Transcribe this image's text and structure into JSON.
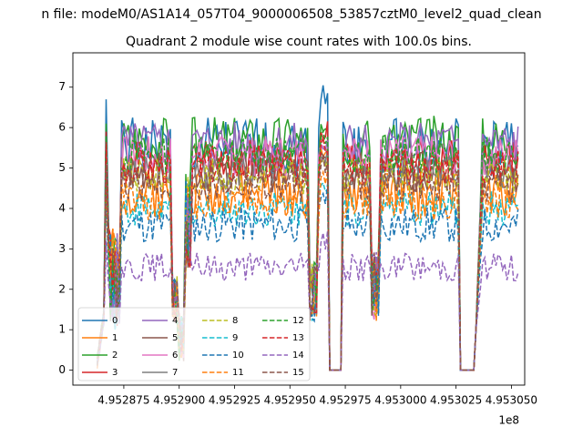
{
  "figure": {
    "suptitle": "n file: modeM0/AS1A14_057T04_9000006508_53857cztM0_level2_quad_clean"
  },
  "chart_data": {
    "type": "line",
    "title": "Quadrant 2 module wise count rates with 100.0s bins.",
    "xlabel": "",
    "ylabel": "",
    "x_offset_label": "1e8",
    "xlim": [
      495285200,
      495305600
    ],
    "ylim": [
      -0.37,
      7.85
    ],
    "x_ticks": [
      {
        "value": 495287500,
        "label": "4.952875"
      },
      {
        "value": 495290000,
        "label": "4.952900"
      },
      {
        "value": 495292500,
        "label": "4.952925"
      },
      {
        "value": 495295000,
        "label": "4.952950"
      },
      {
        "value": 495297500,
        "label": "4.952975"
      },
      {
        "value": 495300000,
        "label": "4.953000"
      },
      {
        "value": 495302500,
        "label": "4.953025"
      },
      {
        "value": 495305000,
        "label": "4.953050"
      }
    ],
    "y_ticks": [
      {
        "value": 0,
        "label": "0"
      },
      {
        "value": 1,
        "label": "1"
      },
      {
        "value": 2,
        "label": "2"
      },
      {
        "value": 3,
        "label": "3"
      },
      {
        "value": 4,
        "label": "4"
      },
      {
        "value": 5,
        "label": "5"
      },
      {
        "value": 6,
        "label": "6"
      },
      {
        "value": 7,
        "label": "7"
      }
    ],
    "grid": false,
    "legend_position": "lower-left",
    "legend_columns": 4,
    "series": [
      {
        "name": "0",
        "color": "#1f77b4",
        "dash": "solid",
        "level": 5.5,
        "amp": 0.75,
        "peak": 6.7,
        "seed": 1
      },
      {
        "name": "1",
        "color": "#ff7f0e",
        "dash": "solid",
        "level": 4.4,
        "amp": 0.6,
        "peak": 5.5,
        "seed": 2
      },
      {
        "name": "2",
        "color": "#2ca02c",
        "dash": "solid",
        "level": 5.7,
        "amp": 0.6,
        "peak": 6.1,
        "seed": 3
      },
      {
        "name": "3",
        "color": "#d62728",
        "dash": "solid",
        "level": 5.2,
        "amp": 0.5,
        "peak": 5.9,
        "seed": 4
      },
      {
        "name": "4",
        "color": "#9467bd",
        "dash": "solid",
        "level": 5.6,
        "amp": 0.55,
        "peak": 5.6,
        "seed": 5
      },
      {
        "name": "5",
        "color": "#8c564b",
        "dash": "solid",
        "level": 4.9,
        "amp": 0.5,
        "peak": 5.4,
        "seed": 6
      },
      {
        "name": "6",
        "color": "#e377c2",
        "dash": "solid",
        "level": 5.3,
        "amp": 0.5,
        "peak": 5.6,
        "seed": 7
      },
      {
        "name": "7",
        "color": "#7f7f7f",
        "dash": "solid",
        "level": 4.9,
        "amp": 0.45,
        "peak": 5.3,
        "seed": 8
      },
      {
        "name": "8",
        "color": "#bcbd22",
        "dash": "dashed",
        "level": 4.8,
        "amp": 0.45,
        "peak": 5.2,
        "seed": 9
      },
      {
        "name": "9",
        "color": "#17becf",
        "dash": "dashed",
        "level": 4.0,
        "amp": 0.45,
        "peak": 4.6,
        "seed": 10
      },
      {
        "name": "10",
        "color": "#1f77b4",
        "dash": "dashed",
        "level": 3.6,
        "amp": 0.45,
        "peak": 4.3,
        "seed": 11
      },
      {
        "name": "11",
        "color": "#ff7f0e",
        "dash": "dashed",
        "level": 4.2,
        "amp": 0.5,
        "peak": 4.8,
        "seed": 12
      },
      {
        "name": "12",
        "color": "#2ca02c",
        "dash": "dashed",
        "level": 5.3,
        "amp": 0.45,
        "peak": 5.8,
        "seed": 13
      },
      {
        "name": "13",
        "color": "#d62728",
        "dash": "dashed",
        "level": 5.0,
        "amp": 0.45,
        "peak": 5.6,
        "seed": 14
      },
      {
        "name": "14",
        "color": "#9467bd",
        "dash": "dashed",
        "level": 2.55,
        "amp": 0.35,
        "peak": 3.2,
        "seed": 15
      },
      {
        "name": "15",
        "color": "#8c564b",
        "dash": "dashed",
        "level": 4.6,
        "amp": 0.45,
        "peak": 5.1,
        "seed": 16
      }
    ]
  }
}
